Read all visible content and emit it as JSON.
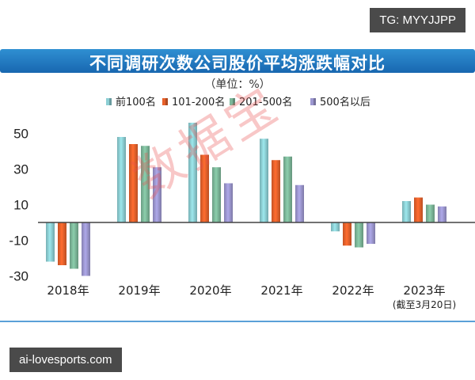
{
  "tags": {
    "top": "TG: MYYJJPP",
    "bottom": "ai-lovesports.com"
  },
  "header": {
    "title": "不同调研次数公司股价平均涨跌幅对比",
    "unit": "（单位：%）"
  },
  "watermark": "数据宝",
  "colors": {
    "title_bar": "#1f72bc",
    "axis": "#444444"
  },
  "chart_data": {
    "type": "bar",
    "title": "不同调研次数公司股价平均涨跌幅对比",
    "unit": "（单位：%）",
    "categories": [
      "2018年",
      "2019年",
      "2020年",
      "2021年",
      "2022年",
      "2023年"
    ],
    "category_notes": [
      "",
      "",
      "",
      "",
      "",
      "(截至3月20日)"
    ],
    "ylim": [
      -35,
      57
    ],
    "y_ticks": [
      -30,
      -10,
      10,
      30,
      50
    ],
    "legend_position": "top-center",
    "series": [
      {
        "name": "前100名",
        "color": "#8ccfd4",
        "values": [
          -22,
          48,
          56,
          47,
          -5,
          12
        ]
      },
      {
        "name": "101-200名",
        "color": "#e8612a",
        "values": [
          -24,
          44,
          38,
          35,
          -13,
          14
        ]
      },
      {
        "name": "201-500名",
        "color": "#7db89a",
        "values": [
          -26,
          43,
          31,
          37,
          -14,
          10
        ]
      },
      {
        "name": "500名以后",
        "color": "#9c97d0",
        "values": [
          -30,
          31,
          22,
          21,
          -12,
          9
        ]
      }
    ]
  }
}
